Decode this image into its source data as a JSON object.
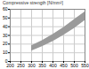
{
  "chart_data": {
    "type": "area",
    "ylabel": "Compressive strength [N/mm²]",
    "x": [
      300,
      350,
      400,
      450,
      500,
      550
    ],
    "lower": [
      12,
      17,
      23,
      30,
      38,
      47
    ],
    "upper": [
      18,
      24,
      31,
      39,
      48,
      57
    ],
    "color": "#9a9a9a",
    "xlim": [
      200,
      550
    ],
    "xticks": [
      200,
      250,
      300,
      350,
      400,
      450,
      500,
      550
    ],
    "ylim": [
      0,
      60
    ],
    "yticks": [
      0,
      10,
      20,
      30,
      40,
      50,
      60
    ],
    "grid": true
  }
}
